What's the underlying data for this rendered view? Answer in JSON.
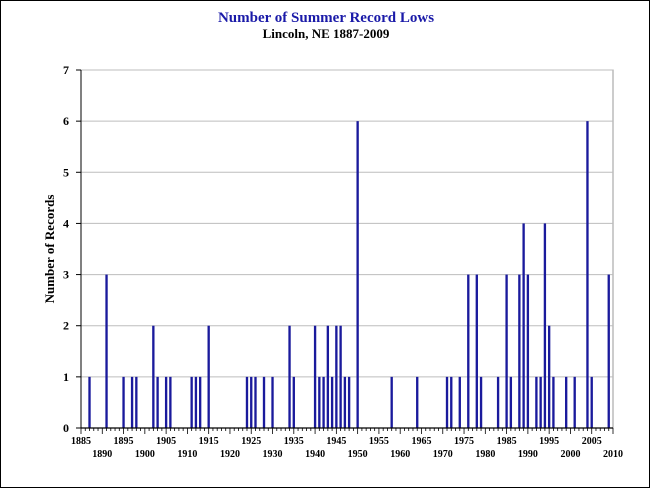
{
  "chart_data": {
    "type": "bar",
    "title": "Number of Summer Record Lows",
    "subtitle": "Lincoln, NE 1887-2009",
    "xlabel": "",
    "ylabel": "Number of Records",
    "xlim": [
      1885,
      2010
    ],
    "ylim": [
      0,
      7
    ],
    "yticks": [
      "0",
      "1",
      "2",
      "3",
      "4",
      "5",
      "6",
      "7"
    ],
    "xticks_upper_row": [
      "1885",
      "1895",
      "1905",
      "1915",
      "1925",
      "1935",
      "1945",
      "1955",
      "1965",
      "1975",
      "1985",
      "1995",
      "2005"
    ],
    "xticks_lower_row": [
      "1890",
      "1900",
      "1910",
      "1920",
      "1930",
      "1940",
      "1950",
      "1960",
      "1970",
      "1980",
      "1990",
      "2000",
      "2010"
    ],
    "grid": true,
    "bar_color": "#1a1a9c",
    "title_color": "#1a1aa8",
    "series": [
      {
        "x": [
          1887,
          1891,
          1895,
          1897,
          1898,
          1902,
          1903,
          1905,
          1906,
          1911,
          1912,
          1913,
          1915,
          1924,
          1925,
          1926,
          1928,
          1930,
          1934,
          1935,
          1940,
          1941,
          1942,
          1943,
          1944,
          1945,
          1946,
          1947,
          1948,
          1950,
          1958,
          1964,
          1971,
          1972,
          1974,
          1976,
          1978,
          1979,
          1983,
          1985,
          1986,
          1988,
          1989,
          1990,
          1992,
          1993,
          1994,
          1995,
          1996,
          1999,
          2001,
          2004,
          2005,
          2009
        ],
        "values": [
          1,
          3,
          1,
          1,
          1,
          2,
          1,
          1,
          1,
          1,
          1,
          1,
          2,
          1,
          1,
          1,
          1,
          1,
          2,
          1,
          2,
          1,
          1,
          2,
          1,
          2,
          2,
          1,
          1,
          6,
          1,
          1,
          1,
          1,
          1,
          3,
          3,
          1,
          1,
          3,
          1,
          3,
          4,
          3,
          1,
          1,
          4,
          2,
          1,
          1,
          1,
          6,
          1,
          3
        ]
      }
    ]
  }
}
